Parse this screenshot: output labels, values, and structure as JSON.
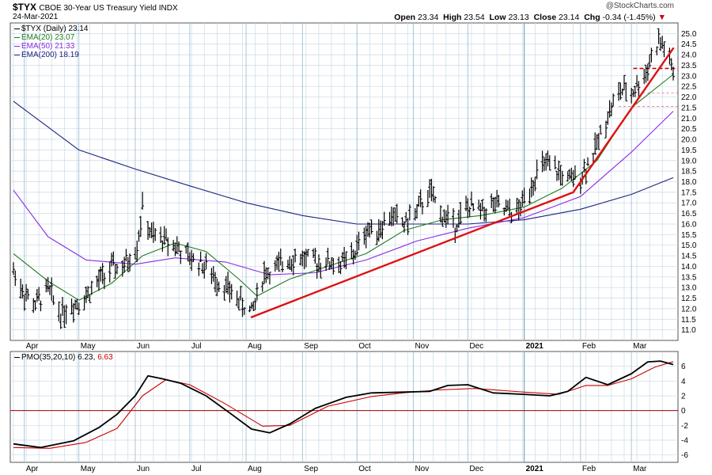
{
  "header": {
    "symbol": "$TYX",
    "name": "CBOE 30-Year US Treasury Yield INDX",
    "date": "24-Mar-2021",
    "watermark": "@StockCharts.com",
    "open_label": "Open",
    "open": "23.34",
    "high_label": "High",
    "high": "23.54",
    "low_label": "Low",
    "low": "23.13",
    "close_label": "Close",
    "close": "23.14",
    "chg_label": "Chg",
    "chg": "-0.34 (-1.45%)"
  },
  "legend": [
    {
      "label": "$TYX (Daily)",
      "value": "23.14",
      "color": "#000000"
    },
    {
      "label": "EMA(20)",
      "value": "23.07",
      "color": "#1f7a1f"
    },
    {
      "label": "EMA(50)",
      "value": "21.33",
      "color": "#8a2be2"
    },
    {
      "label": "EMA(200)",
      "value": "18.19",
      "color": "#1a237e"
    }
  ],
  "lower_legend": {
    "label": "PMO(35,20,10)",
    "value1": "6.23",
    "value2": "6.63",
    "value2_color": "#cc0000"
  },
  "colors": {
    "price": "#000000",
    "ema20": "#1f7a1f",
    "ema50": "#8a2be2",
    "ema200": "#1a237e",
    "trendline": "#dd1111",
    "pmo": "#000000",
    "pmo_signal": "#cc0000",
    "grid": "#c8dbe8",
    "zero_line": "#990000"
  },
  "chart_data": [
    {
      "type": "ohlc",
      "title": "$TYX CBOE 30-Year US Treasury Yield INDX",
      "x_type": "date",
      "x_range": [
        "2020-03-26",
        "2021-03-24"
      ],
      "x_ticks": [
        {
          "date": "2020-04-01",
          "label": "Apr"
        },
        {
          "date": "2020-05-01",
          "label": "May"
        },
        {
          "date": "2020-06-01",
          "label": "Jun"
        },
        {
          "date": "2020-07-01",
          "label": "Jul"
        },
        {
          "date": "2020-08-01",
          "label": "Aug"
        },
        {
          "date": "2020-09-01",
          "label": "Sep"
        },
        {
          "date": "2020-10-01",
          "label": "Oct"
        },
        {
          "date": "2020-11-01",
          "label": "Nov"
        },
        {
          "date": "2020-12-01",
          "label": "Dec"
        },
        {
          "date": "2021-01-01",
          "label": "2021"
        },
        {
          "date": "2021-02-01",
          "label": "Feb"
        },
        {
          "date": "2021-03-01",
          "label": "Mar"
        }
      ],
      "ylim": [
        10.5,
        25.5
      ],
      "y_ticks": [
        11.0,
        11.5,
        12.0,
        12.5,
        13.0,
        13.5,
        14.0,
        14.5,
        15.0,
        15.5,
        16.0,
        16.5,
        17.0,
        17.5,
        18.0,
        18.5,
        19.0,
        19.5,
        20.0,
        20.5,
        21.0,
        21.5,
        22.0,
        22.5,
        23.0,
        23.5,
        24.0,
        24.5,
        25.0
      ],
      "grid": true,
      "price_close": [
        [
          "2020-03-26",
          13.8
        ],
        [
          "2020-04-01",
          12.7
        ],
        [
          "2020-04-07",
          12.2
        ],
        [
          "2020-04-14",
          12.9
        ],
        [
          "2020-04-21",
          11.8
        ],
        [
          "2020-04-28",
          12.2
        ],
        [
          "2020-05-05",
          12.6
        ],
        [
          "2020-05-12",
          13.3
        ],
        [
          "2020-05-19",
          13.9
        ],
        [
          "2020-05-26",
          14.0
        ],
        [
          "2020-06-02",
          15.0
        ],
        [
          "2020-06-05",
          16.7
        ],
        [
          "2020-06-10",
          15.4
        ],
        [
          "2020-06-16",
          15.3
        ],
        [
          "2020-06-23",
          15.0
        ],
        [
          "2020-06-30",
          14.4
        ],
        [
          "2020-07-07",
          14.2
        ],
        [
          "2020-07-14",
          13.5
        ],
        [
          "2020-07-21",
          13.0
        ],
        [
          "2020-07-28",
          12.4
        ],
        [
          "2020-08-04",
          11.8
        ],
        [
          "2020-08-11",
          13.7
        ],
        [
          "2020-08-18",
          13.9
        ],
        [
          "2020-08-25",
          14.4
        ],
        [
          "2020-09-01",
          14.4
        ],
        [
          "2020-09-08",
          14.2
        ],
        [
          "2020-09-15",
          14.2
        ],
        [
          "2020-09-22",
          14.1
        ],
        [
          "2020-09-29",
          14.5
        ],
        [
          "2020-10-06",
          15.7
        ],
        [
          "2020-10-13",
          15.8
        ],
        [
          "2020-10-20",
          16.4
        ],
        [
          "2020-10-27",
          16.0
        ],
        [
          "2020-11-03",
          16.6
        ],
        [
          "2020-11-10",
          17.5
        ],
        [
          "2020-11-17",
          16.4
        ],
        [
          "2020-11-24",
          16.0
        ],
        [
          "2020-12-01",
          16.8
        ],
        [
          "2020-12-08",
          16.6
        ],
        [
          "2020-12-15",
          16.9
        ],
        [
          "2020-12-22",
          16.6
        ],
        [
          "2020-12-29",
          16.6
        ],
        [
          "2021-01-06",
          18.1
        ],
        [
          "2021-01-12",
          18.8
        ],
        [
          "2021-01-19",
          18.5
        ],
        [
          "2021-01-26",
          18.0
        ],
        [
          "2021-02-02",
          18.4
        ],
        [
          "2021-02-09",
          19.5
        ],
        [
          "2021-02-16",
          21.2
        ],
        [
          "2021-02-23",
          22.3
        ],
        [
          "2021-03-01",
          22.2
        ],
        [
          "2021-03-08",
          23.0
        ],
        [
          "2021-03-12",
          23.9
        ],
        [
          "2021-03-16",
          24.6
        ],
        [
          "2021-03-19",
          24.4
        ],
        [
          "2021-03-24",
          23.14
        ]
      ],
      "ema20": [
        [
          "2020-03-26",
          14.6
        ],
        [
          "2020-04-14",
          13.3
        ],
        [
          "2020-05-01",
          12.4
        ],
        [
          "2020-05-19",
          13.2
        ],
        [
          "2020-06-05",
          14.5
        ],
        [
          "2020-06-23",
          15.1
        ],
        [
          "2020-07-10",
          14.7
        ],
        [
          "2020-07-28",
          13.4
        ],
        [
          "2020-08-07",
          12.6
        ],
        [
          "2020-08-25",
          13.4
        ],
        [
          "2020-09-15",
          14.0
        ],
        [
          "2020-10-06",
          14.6
        ],
        [
          "2020-10-27",
          15.7
        ],
        [
          "2020-11-17",
          16.2
        ],
        [
          "2020-12-08",
          16.4
        ],
        [
          "2021-01-01",
          16.8
        ],
        [
          "2021-01-22",
          17.7
        ],
        [
          "2021-02-10",
          19.0
        ],
        [
          "2021-03-01",
          21.5
        ],
        [
          "2021-03-24",
          23.07
        ]
      ],
      "ema50": [
        [
          "2020-03-26",
          17.6
        ],
        [
          "2020-04-14",
          15.4
        ],
        [
          "2020-05-05",
          14.3
        ],
        [
          "2020-06-01",
          14.1
        ],
        [
          "2020-06-23",
          14.4
        ],
        [
          "2020-07-21",
          14.2
        ],
        [
          "2020-08-14",
          13.6
        ],
        [
          "2020-09-08",
          13.7
        ],
        [
          "2020-10-06",
          14.3
        ],
        [
          "2020-11-03",
          15.2
        ],
        [
          "2020-12-01",
          15.8
        ],
        [
          "2021-01-01",
          16.3
        ],
        [
          "2021-02-01",
          17.3
        ],
        [
          "2021-03-01",
          19.4
        ],
        [
          "2021-03-24",
          21.33
        ]
      ],
      "ema200": [
        [
          "2020-03-26",
          21.8
        ],
        [
          "2020-05-01",
          19.5
        ],
        [
          "2020-06-01",
          18.6
        ],
        [
          "2020-07-01",
          17.8
        ],
        [
          "2020-08-01",
          17.0
        ],
        [
          "2020-09-01",
          16.4
        ],
        [
          "2020-10-01",
          16.0
        ],
        [
          "2020-11-01",
          16.0
        ],
        [
          "2020-12-01",
          16.0
        ],
        [
          "2021-01-01",
          16.2
        ],
        [
          "2021-02-01",
          16.7
        ],
        [
          "2021-03-01",
          17.4
        ],
        [
          "2021-03-24",
          18.19
        ]
      ],
      "trendlines": [
        {
          "from": [
            "2020-08-04",
            11.6
          ],
          "to": [
            "2021-01-28",
            17.5
          ]
        },
        {
          "from": [
            "2021-01-28",
            17.5
          ],
          "to": [
            "2021-03-24",
            24.3
          ]
        }
      ],
      "reference_levels": [
        {
          "y": 23.35,
          "style": "dashed",
          "from": "2021-03-02"
        },
        {
          "y": 22.2,
          "style": "dashed",
          "from": "2021-03-02"
        },
        {
          "y": 21.55,
          "style": "dashed",
          "from": "2021-02-22"
        }
      ]
    },
    {
      "type": "line",
      "title": "PMO(35,20,10)",
      "ylim": [
        -7,
        8
      ],
      "y_ticks": [
        -6,
        -4,
        -2,
        0,
        2,
        4,
        6
      ],
      "zero_line": true,
      "series": [
        {
          "name": "PMO",
          "points": [
            [
              "2020-03-26",
              -4.5
            ],
            [
              "2020-04-10",
              -5.0
            ],
            [
              "2020-04-28",
              -4.1
            ],
            [
              "2020-05-12",
              -2.3
            ],
            [
              "2020-05-22",
              -0.5
            ],
            [
              "2020-06-01",
              2.0
            ],
            [
              "2020-06-08",
              4.7
            ],
            [
              "2020-06-16",
              4.3
            ],
            [
              "2020-06-26",
              3.7
            ],
            [
              "2020-07-10",
              2.0
            ],
            [
              "2020-07-24",
              -0.5
            ],
            [
              "2020-08-04",
              -2.5
            ],
            [
              "2020-08-14",
              -3.0
            ],
            [
              "2020-08-25",
              -1.8
            ],
            [
              "2020-09-08",
              0.3
            ],
            [
              "2020-09-25",
              1.8
            ],
            [
              "2020-10-09",
              2.4
            ],
            [
              "2020-10-26",
              2.5
            ],
            [
              "2020-11-10",
              2.6
            ],
            [
              "2020-11-20",
              3.4
            ],
            [
              "2020-12-01",
              3.5
            ],
            [
              "2020-12-15",
              2.4
            ],
            [
              "2021-01-01",
              2.2
            ],
            [
              "2021-01-15",
              2.0
            ],
            [
              "2021-01-25",
              2.6
            ],
            [
              "2021-02-04",
              4.5
            ],
            [
              "2021-02-16",
              3.5
            ],
            [
              "2021-03-01",
              5.0
            ],
            [
              "2021-03-10",
              6.6
            ],
            [
              "2021-03-17",
              6.7
            ],
            [
              "2021-03-24",
              6.23
            ]
          ]
        },
        {
          "name": "Signal",
          "points": [
            [
              "2020-03-26",
              -5.0
            ],
            [
              "2020-04-15",
              -5.1
            ],
            [
              "2020-05-05",
              -4.3
            ],
            [
              "2020-05-22",
              -2.4
            ],
            [
              "2020-06-05",
              2.0
            ],
            [
              "2020-06-18",
              4.2
            ],
            [
              "2020-07-01",
              3.5
            ],
            [
              "2020-07-20",
              1.0
            ],
            [
              "2020-08-10",
              -2.1
            ],
            [
              "2020-08-25",
              -2.0
            ],
            [
              "2020-09-15",
              0.6
            ],
            [
              "2020-10-09",
              1.9
            ],
            [
              "2020-10-26",
              2.4
            ],
            [
              "2020-11-15",
              2.8
            ],
            [
              "2020-12-05",
              3.0
            ],
            [
              "2021-01-01",
              2.5
            ],
            [
              "2021-01-20",
              2.2
            ],
            [
              "2021-02-04",
              3.4
            ],
            [
              "2021-02-16",
              3.4
            ],
            [
              "2021-03-01",
              4.3
            ],
            [
              "2021-03-14",
              5.9
            ],
            [
              "2021-03-24",
              6.63
            ]
          ]
        }
      ]
    }
  ]
}
